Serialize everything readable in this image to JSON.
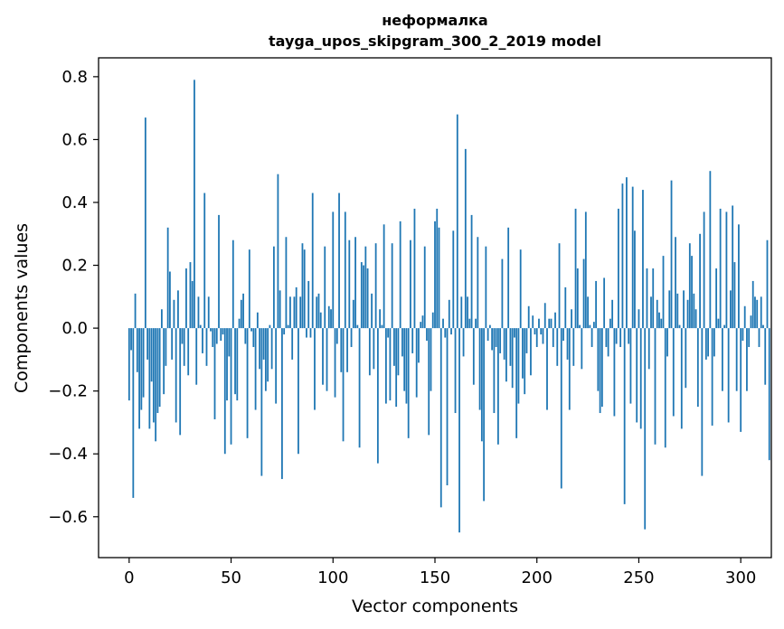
{
  "chart_data": {
    "type": "bar",
    "title_line1": "неформалка",
    "title_line2": "tayga_upos_skipgram_300_2_2019 model",
    "xlabel": "Vector components",
    "ylabel": "Components values",
    "xlim": [
      -15,
      315
    ],
    "ylim": [
      -0.73,
      0.86
    ],
    "bar_color": "#1f77b4",
    "x_ticks": [
      0,
      50,
      100,
      150,
      200,
      250,
      300
    ],
    "x_tick_labels": [
      "0",
      "50",
      "100",
      "150",
      "200",
      "250",
      "300"
    ],
    "y_ticks": [
      -0.6,
      -0.4,
      -0.2,
      0.0,
      0.2,
      0.4,
      0.6,
      0.8
    ],
    "y_tick_labels": [
      "−0.6",
      "−0.4",
      "−0.2",
      "0.0",
      "0.2",
      "0.4",
      "0.6",
      "0.8"
    ],
    "values": [
      -0.23,
      -0.07,
      -0.54,
      0.11,
      -0.14,
      -0.32,
      -0.26,
      -0.22,
      0.67,
      -0.1,
      -0.32,
      -0.17,
      -0.3,
      -0.36,
      -0.27,
      -0.25,
      0.06,
      -0.21,
      -0.12,
      0.32,
      0.18,
      -0.1,
      0.09,
      -0.3,
      0.12,
      -0.34,
      -0.05,
      -0.12,
      0.19,
      -0.15,
      0.21,
      0.15,
      0.79,
      -0.18,
      0.1,
      0.01,
      -0.08,
      0.43,
      -0.12,
      0.1,
      -0.01,
      -0.06,
      -0.29,
      -0.05,
      0.36,
      -0.04,
      -0.02,
      -0.4,
      -0.23,
      -0.09,
      -0.37,
      0.28,
      -0.21,
      -0.23,
      0.03,
      0.09,
      0.11,
      -0.05,
      -0.35,
      0.25,
      -0.01,
      -0.06,
      -0.26,
      0.05,
      -0.13,
      -0.47,
      -0.1,
      -0.2,
      -0.17,
      0.01,
      -0.13,
      0.26,
      -0.24,
      0.49,
      0.12,
      -0.48,
      -0.02,
      0.29,
      0.01,
      0.1,
      -0.1,
      0.1,
      0.13,
      -0.4,
      0.1,
      0.27,
      0.25,
      -0.03,
      0.15,
      -0.03,
      0.43,
      -0.26,
      0.1,
      0.11,
      0.05,
      -0.18,
      0.26,
      -0.2,
      0.07,
      0.06,
      0.37,
      -0.22,
      -0.05,
      0.43,
      -0.14,
      -0.36,
      0.37,
      -0.14,
      0.28,
      -0.06,
      0.09,
      0.29,
      0.01,
      -0.38,
      0.21,
      0.2,
      0.26,
      0.19,
      -0.15,
      0.11,
      -0.13,
      0.27,
      -0.43,
      0.06,
      0.01,
      0.33,
      -0.24,
      -0.03,
      -0.23,
      0.27,
      -0.12,
      -0.25,
      -0.15,
      0.34,
      -0.09,
      -0.2,
      -0.24,
      -0.35,
      0.28,
      -0.08,
      0.38,
      -0.22,
      -0.11,
      0.02,
      0.04,
      0.26,
      -0.04,
      -0.34,
      -0.2,
      0.05,
      0.34,
      0.38,
      0.32,
      -0.57,
      0.03,
      -0.03,
      -0.5,
      0.09,
      -0.02,
      0.31,
      -0.27,
      0.68,
      -0.65,
      0.1,
      -0.09,
      0.57,
      0.1,
      0.03,
      0.36,
      -0.18,
      0.03,
      0.29,
      -0.26,
      -0.36,
      -0.55,
      0.26,
      -0.04,
      0.01,
      -0.07,
      -0.27,
      -0.06,
      -0.37,
      -0.08,
      0.22,
      -0.1,
      -0.17,
      0.32,
      -0.12,
      -0.19,
      -0.03,
      -0.35,
      -0.24,
      0.25,
      -0.16,
      -0.21,
      -0.08,
      0.07,
      -0.15,
      0.04,
      -0.02,
      -0.06,
      0.03,
      -0.02,
      -0.05,
      0.08,
      -0.26,
      0.03,
      0.03,
      -0.06,
      0.05,
      -0.12,
      0.27,
      -0.51,
      -0.04,
      0.13,
      -0.1,
      -0.26,
      0.06,
      -0.12,
      0.38,
      0.19,
      0.01,
      -0.13,
      0.22,
      0.37,
      0.1,
      0.01,
      -0.06,
      0.02,
      0.15,
      -0.2,
      -0.27,
      -0.25,
      0.16,
      -0.06,
      -0.09,
      0.03,
      0.09,
      -0.28,
      -0.05,
      0.38,
      -0.06,
      0.46,
      -0.56,
      0.48,
      -0.05,
      -0.24,
      0.45,
      0.31,
      -0.3,
      0.06,
      -0.32,
      0.44,
      -0.64,
      0.19,
      -0.13,
      0.1,
      0.19,
      -0.37,
      0.09,
      0.05,
      0.03,
      0.23,
      -0.38,
      -0.09,
      0.12,
      0.47,
      -0.28,
      0.29,
      0.11,
      0.01,
      -0.32,
      0.12,
      -0.19,
      0.09,
      0.27,
      0.23,
      0.11,
      0.06,
      -0.25,
      0.3,
      -0.47,
      0.37,
      -0.1,
      -0.09,
      0.5,
      -0.31,
      -0.09,
      0.19,
      0.03,
      0.38,
      -0.2,
      0.01,
      0.37,
      -0.3,
      0.12,
      0.39,
      0.21,
      -0.2,
      0.33,
      -0.33,
      -0.04,
      0.07,
      -0.2,
      -0.06,
      0.04,
      0.15,
      0.1,
      0.09,
      -0.06,
      0.1,
      0.01,
      -0.18,
      0.28,
      -0.42
    ]
  }
}
